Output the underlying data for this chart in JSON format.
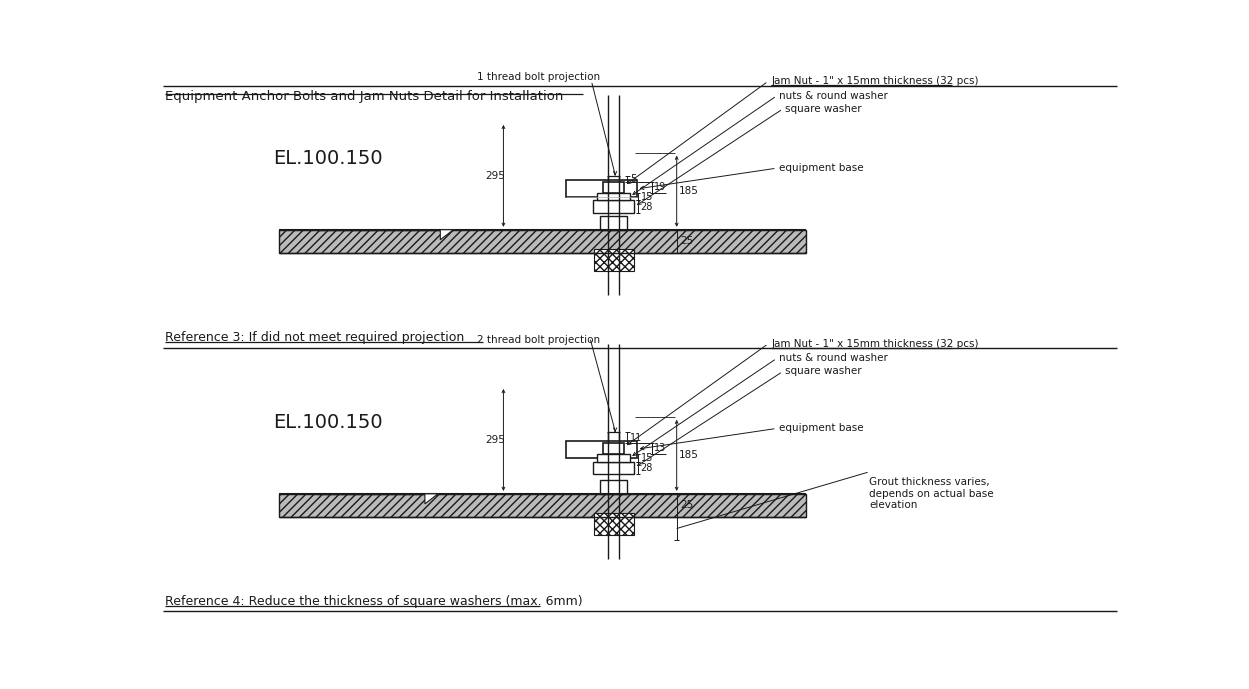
{
  "title": "Equipment Anchor Bolts and Jam Nuts Detail for Installation",
  "bg_color": "#ffffff",
  "line_color": "#1a1a1a",
  "text_color": "#1a1a1a",
  "top": {
    "label_projection": "1 thread bolt projection",
    "label_el": "EL.100.150",
    "ref_text": "Reference 3: If did not meet required projection",
    "dim_5": "5",
    "dim_15": "15",
    "dim_28": "28",
    "dim_19": "19",
    "dim_295": "295",
    "dim_185": "185",
    "dim_25": "25",
    "jam_nut": "Jam Nut - 1\" x 15mm thickness (32 pcs)",
    "nuts_round": "nuts & round washer",
    "square_washer": "square washer",
    "equip_base": "equipment base"
  },
  "bottom": {
    "label_projection": "2 thread bolt projection",
    "label_el": "EL.100.150",
    "ref_text": "Reference 4: Reduce the thickness of square washers (max. 6mm)",
    "dim_11": "11",
    "dim_15": "15",
    "dim_28": "28",
    "dim_13": "13",
    "dim_295": "295",
    "dim_185": "185",
    "dim_25": "25",
    "jam_nut": "Jam Nut - 1\" x 15mm thickness (32 pcs)",
    "nuts_round": "nuts & round washer",
    "square_washer": "square washer",
    "equip_base": "equipment base",
    "grout_text": "Grout thickness varies,\ndepends on actual base\nelevation"
  }
}
